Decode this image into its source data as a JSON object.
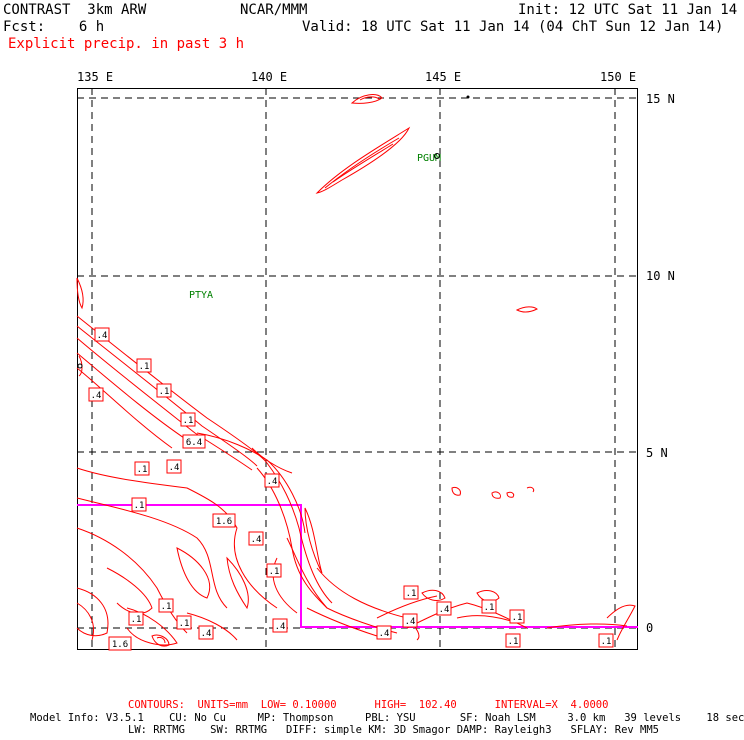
{
  "header": {
    "model": "CONTRAST  3km ARW",
    "org": "NCAR/MMM",
    "init": "Init: 12 UTC Sat 11 Jan 14",
    "fcst": "Fcst:    6 h",
    "valid": "Valid: 18 UTC Sat 11 Jan 14 (04 ChT Sun 12 Jan 14)",
    "field": "Explicit precip. in past 3 h"
  },
  "map": {
    "lon_labels": [
      "135 E",
      "140 E",
      "145 E",
      "150 E"
    ],
    "lat_labels": [
      "15 N",
      "10 N",
      "5 N",
      "0"
    ],
    "stations": [
      "PGUM",
      "PTYA"
    ],
    "contour_labels": [
      ".4",
      ".1",
      ".1",
      ".4",
      ".1",
      "6.4",
      ".1",
      ".4",
      ".4",
      ".1",
      "1.6",
      ".4",
      ".1",
      ".1",
      ".1",
      ".4",
      ".1",
      ".1",
      ".4",
      ".4",
      ".1",
      ".1",
      ".1",
      ".1",
      "1.6",
      ".4",
      ".4"
    ],
    "colors": {
      "contour": "#ff0000",
      "box": "#ff00ff",
      "grid": "#000000",
      "station": "#008000"
    }
  },
  "footer": {
    "contours": "CONTOURS:  UNITS=mm  LOW= 0.10000      HIGH=  102.40      INTERVAL=X  4.0000",
    "model_info_1": "Model Info: V3.5.1    CU: No Cu     MP: Thompson     PBL: YSU       SF: Noah LSM     3.0 km   39 levels    18 sec",
    "model_info_2": "LW: RRTMG    SW: RRTMG   DIFF: simple KM: 3D Smagor DAMP: Rayleigh3   SFLAY: Rev MM5"
  }
}
